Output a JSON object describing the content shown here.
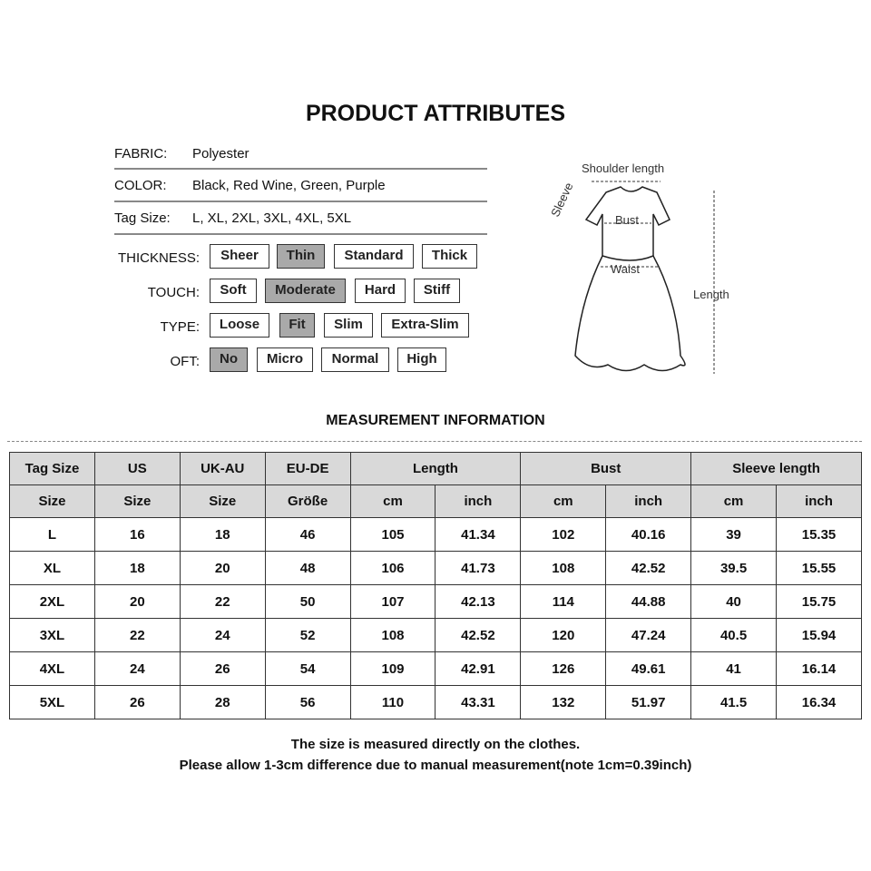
{
  "title": "PRODUCT ATTRIBUTES",
  "attributes": [
    {
      "label": "FABRIC:",
      "value": "Polyester"
    },
    {
      "label": "COLOR:",
      "value": "Black,  Red Wine,  Green,  Purple"
    },
    {
      "label": "Tag Size:",
      "value": "L,  XL,  2XL,  3XL,  4XL,  5XL"
    }
  ],
  "options": [
    {
      "label": "THICKNESS:",
      "items": [
        "Sheer",
        "Thin",
        "Standard",
        "Thick"
      ],
      "selected": "Thin"
    },
    {
      "label": "TOUCH:",
      "items": [
        "Soft",
        "Moderate",
        "Hard",
        "Stiff"
      ],
      "selected": "Moderate"
    },
    {
      "label": "TYPE:",
      "items": [
        "Loose",
        "Fit",
        "Slim",
        "Extra-Slim"
      ],
      "selected": "Fit"
    },
    {
      "label": "OFT:",
      "items": [
        "No",
        "Micro",
        "Normal",
        "High"
      ],
      "selected": "No"
    }
  ],
  "diagram": {
    "shoulder": "Shoulder length",
    "sleeve": "Sleeve",
    "bust": "Bust",
    "waist": "Waist",
    "length": "Length"
  },
  "measurement_title": "MEASUREMENT INFORMATION",
  "table": {
    "header1": [
      "Tag Size",
      "US",
      "UK-AU",
      "EU-DE",
      "Length",
      "Bust",
      "Sleeve length"
    ],
    "header2": [
      "Size",
      "Size",
      "Size",
      "Größe",
      "cm",
      "inch",
      "cm",
      "inch",
      "cm",
      "inch"
    ],
    "rows": [
      [
        "L",
        "16",
        "18",
        "46",
        "105",
        "41.34",
        "102",
        "40.16",
        "39",
        "15.35"
      ],
      [
        "XL",
        "18",
        "20",
        "48",
        "106",
        "41.73",
        "108",
        "42.52",
        "39.5",
        "15.55"
      ],
      [
        "2XL",
        "20",
        "22",
        "50",
        "107",
        "42.13",
        "114",
        "44.88",
        "40",
        "15.75"
      ],
      [
        "3XL",
        "22",
        "24",
        "52",
        "108",
        "42.52",
        "120",
        "47.24",
        "40.5",
        "15.94"
      ],
      [
        "4XL",
        "24",
        "26",
        "54",
        "109",
        "42.91",
        "126",
        "49.61",
        "41",
        "16.14"
      ],
      [
        "5XL",
        "26",
        "28",
        "56",
        "110",
        "43.31",
        "132",
        "51.97",
        "41.5",
        "16.34"
      ]
    ]
  },
  "notes": [
    "The size is measured directly on the clothes.",
    "Please allow 1-3cm difference due to manual measurement(note 1cm=0.39inch)"
  ]
}
